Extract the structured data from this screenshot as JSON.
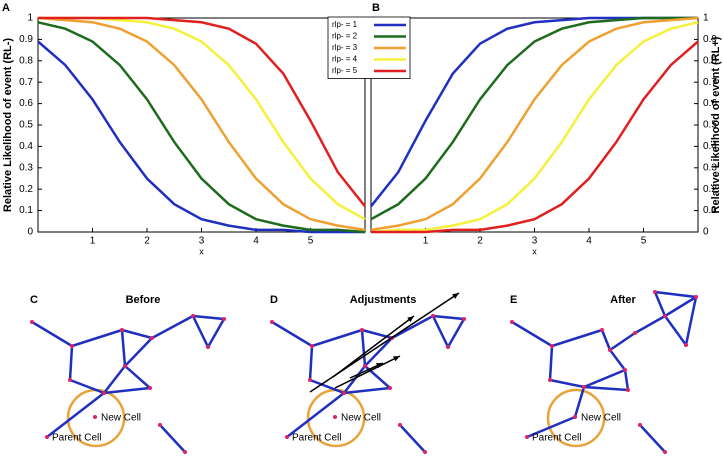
{
  "chart_data": [
    {
      "type": "line",
      "panel_label": "A",
      "ylabel": "Relative Likelihood of event (RL-)",
      "xlabel": "x",
      "x": [
        0,
        0.5,
        1,
        1.5,
        2,
        2.5,
        3,
        3.5,
        4,
        4.5,
        5,
        5.5,
        6
      ],
      "xlim": [
        0,
        6
      ],
      "xticks": [
        1,
        2,
        3,
        4,
        5
      ],
      "ylim": [
        0,
        1
      ],
      "yticks": [
        0,
        0.1,
        0.2,
        0.3,
        0.4,
        0.5,
        0.6,
        0.7,
        0.8,
        0.9,
        1
      ],
      "yaxis_side": "left",
      "legend": "upper right",
      "series": [
        {
          "name": "rlp- = 1",
          "color": "#1f2fbf",
          "values": [
            0.89,
            0.78,
            0.62,
            0.42,
            0.25,
            0.13,
            0.06,
            0.03,
            0.01,
            0.01,
            0,
            0,
            0
          ]
        },
        {
          "name": "rlp- = 2",
          "color": "#1e6b1e",
          "values": [
            0.98,
            0.95,
            0.89,
            0.78,
            0.62,
            0.42,
            0.25,
            0.13,
            0.06,
            0.03,
            0.01,
            0.01,
            0
          ]
        },
        {
          "name": "rlp- = 3",
          "color": "#f0a030",
          "values": [
            1,
            0.99,
            0.98,
            0.95,
            0.89,
            0.78,
            0.62,
            0.42,
            0.25,
            0.13,
            0.06,
            0.03,
            0.01
          ]
        },
        {
          "name": "rlp- = 4",
          "color": "#f5f03a",
          "values": [
            1,
            1,
            1,
            0.99,
            0.98,
            0.95,
            0.89,
            0.78,
            0.62,
            0.42,
            0.25,
            0.13,
            0.06
          ]
        },
        {
          "name": "rlp- = 5",
          "color": "#e02020",
          "values": [
            1,
            1,
            1,
            1,
            1,
            0.99,
            0.98,
            0.95,
            0.88,
            0.74,
            0.52,
            0.28,
            0.12
          ]
        }
      ]
    },
    {
      "type": "line",
      "panel_label": "B",
      "ylabel": "Relative Likelihood of event (RL+)",
      "xlabel": "x",
      "x": [
        0,
        0.5,
        1,
        1.5,
        2,
        2.5,
        3,
        3.5,
        4,
        4.5,
        5,
        5.5,
        6
      ],
      "xlim": [
        0,
        6
      ],
      "xticks": [
        1,
        2,
        3,
        4,
        5
      ],
      "ylim": [
        0,
        1
      ],
      "yticks": [
        0,
        0.1,
        0.2,
        0.3,
        0.4,
        0.5,
        0.6,
        0.7,
        0.8,
        0.9,
        1
      ],
      "yaxis_side": "right",
      "series": [
        {
          "color": "#1f2fbf",
          "values": [
            0.12,
            0.28,
            0.52,
            0.74,
            0.88,
            0.95,
            0.98,
            0.99,
            1,
            1,
            1,
            1,
            1
          ]
        },
        {
          "color": "#1e6b1e",
          "values": [
            0.06,
            0.13,
            0.25,
            0.42,
            0.62,
            0.78,
            0.89,
            0.95,
            0.98,
            0.99,
            1,
            1,
            1
          ]
        },
        {
          "color": "#f0a030",
          "values": [
            0.01,
            0.03,
            0.06,
            0.13,
            0.25,
            0.42,
            0.62,
            0.78,
            0.89,
            0.95,
            0.98,
            0.99,
            1
          ]
        },
        {
          "color": "#f5f03a",
          "values": [
            0,
            0.01,
            0.01,
            0.03,
            0.06,
            0.13,
            0.25,
            0.42,
            0.62,
            0.78,
            0.89,
            0.95,
            0.98
          ]
        },
        {
          "color": "#e02020",
          "values": [
            0,
            0,
            0,
            0.01,
            0.01,
            0.03,
            0.06,
            0.13,
            0.25,
            0.42,
            0.62,
            0.78,
            0.89
          ]
        }
      ]
    }
  ],
  "diagrams": [
    {
      "label": "C",
      "title": "Before",
      "new_cell": "New Cell",
      "parent_cell": "Parent Cell"
    },
    {
      "label": "D",
      "title": "Adjustments",
      "new_cell": "New Cell",
      "parent_cell": "Parent Cell"
    },
    {
      "label": "E",
      "title": "After",
      "new_cell": "New Cell",
      "parent_cell": "Parent Cell"
    }
  ]
}
